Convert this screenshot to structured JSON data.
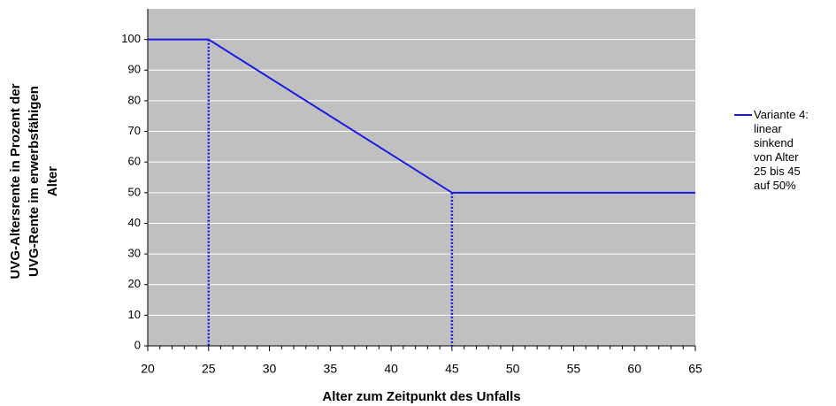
{
  "chart_data": {
    "type": "line",
    "xlabel": "Alter zum Zeitpunkt des Unfalls",
    "ylabel": [
      "UVG-Altersrente in Prozent der",
      "UVG-Rente im erwerbsfähigen",
      "Alter"
    ],
    "x": [
      20,
      25,
      45,
      65
    ],
    "series": [
      {
        "name": "Variante 4: linear sinkend von Alter 25 bis 45 auf 50%",
        "color": "#1a1ae6",
        "values": [
          100,
          100,
          50,
          50
        ]
      }
    ],
    "xlim": [
      20,
      65
    ],
    "xticks": [
      20,
      25,
      30,
      35,
      40,
      45,
      50,
      55,
      60,
      65
    ],
    "xminorticks": [
      21,
      22,
      23,
      24,
      26,
      27,
      28,
      29,
      31,
      32,
      33,
      34,
      36,
      37,
      38,
      39,
      41,
      42,
      43,
      44,
      46,
      47,
      48,
      49,
      51,
      52,
      53,
      54,
      56,
      57,
      58,
      59,
      61,
      62,
      63,
      64
    ],
    "ylim": [
      0,
      110
    ],
    "yticks": [
      0,
      10,
      20,
      30,
      40,
      50,
      60,
      70,
      80,
      90,
      100
    ],
    "grid": true,
    "drop_lines": true,
    "background": "#c0c0c0",
    "legend": "right"
  }
}
